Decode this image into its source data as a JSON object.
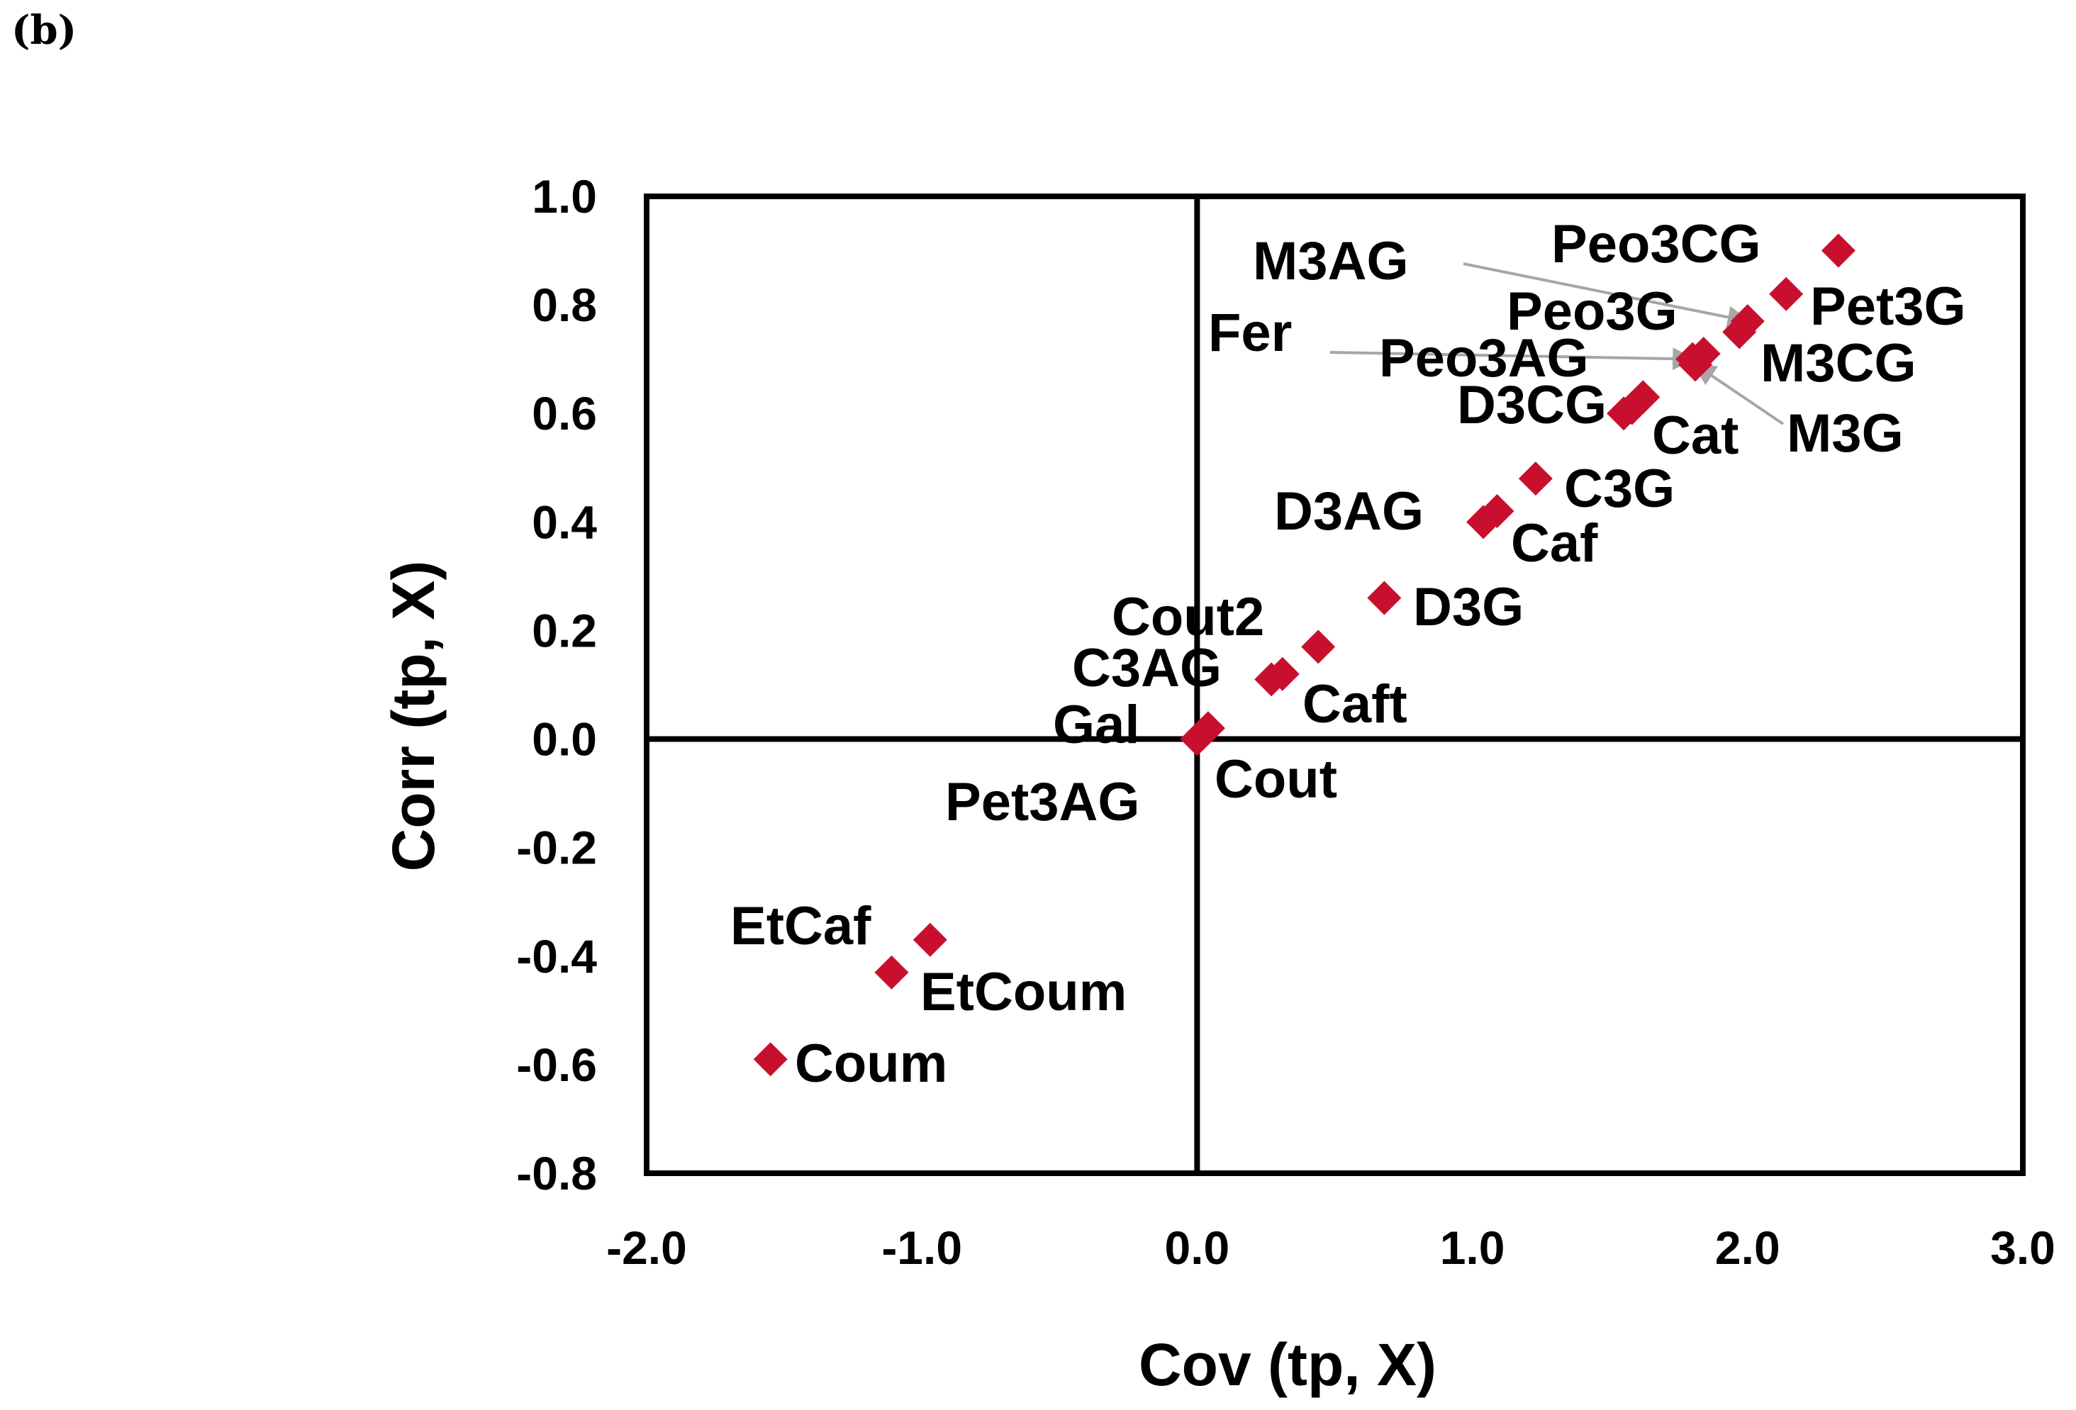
{
  "panel_label": "(b)",
  "chart_data": {
    "type": "scatter",
    "title": "",
    "xlabel": "Cov (tp, X)",
    "ylabel": "Corr (tp, X)",
    "xlim": [
      -2.0,
      3.0
    ],
    "ylim": [
      -0.8,
      1.0
    ],
    "x_ticks": [
      -2.0,
      -1.0,
      0.0,
      1.0,
      2.0,
      3.0
    ],
    "y_ticks": [
      -0.8,
      -0.6,
      -0.4,
      -0.2,
      0.0,
      0.2,
      0.4,
      0.6,
      0.8,
      1.0
    ],
    "x_tick_labels": [
      "-2.0",
      "-1.0",
      "0.0",
      "1.0",
      "2.0",
      "3.0"
    ],
    "y_tick_labels": [
      "-0.8",
      "-0.6",
      "-0.4",
      "-0.2",
      "0.0",
      "0.2",
      "0.4",
      "0.6",
      "0.8",
      "1.0"
    ],
    "marker": "diamond",
    "marker_color": "#c8102e",
    "leader_color": "#a6a6a6",
    "points": [
      {
        "label": "Peo3CG",
        "x": 2.33,
        "y": 0.9
      },
      {
        "label": "Pet3G",
        "x": 2.14,
        "y": 0.82
      },
      {
        "label": "M3AG",
        "x": 2.0,
        "y": 0.77
      },
      {
        "label": "Peo3G",
        "x": 1.97,
        "y": 0.75
      },
      {
        "label": "M3CG",
        "x": 1.84,
        "y": 0.71
      },
      {
        "label": "M3G",
        "x": 1.81,
        "y": 0.69
      },
      {
        "label": "Fer",
        "x": 1.8,
        "y": 0.7
      },
      {
        "label": "Peo3AG",
        "x": 1.62,
        "y": 0.63
      },
      {
        "label": "D3CG",
        "x": 1.58,
        "y": 0.61
      },
      {
        "label": "Cat",
        "x": 1.55,
        "y": 0.6
      },
      {
        "label": "C3G",
        "x": 1.23,
        "y": 0.48
      },
      {
        "label": "Caf",
        "x": 1.09,
        "y": 0.42
      },
      {
        "label": "D3AG",
        "x": 1.04,
        "y": 0.4
      },
      {
        "label": "D3G",
        "x": 0.68,
        "y": 0.26
      },
      {
        "label": "Cout2",
        "x": 0.44,
        "y": 0.17
      },
      {
        "label": "Caft",
        "x": 0.31,
        "y": 0.12
      },
      {
        "label": "C3AG",
        "x": 0.27,
        "y": 0.11
      },
      {
        "label": "Cout",
        "x": 0.04,
        "y": 0.02
      },
      {
        "label": "Gal",
        "x": 0.02,
        "y": 0.01
      },
      {
        "label": "Pet3AG",
        "x": 0.0,
        "y": 0.0
      },
      {
        "label": "EtCaf",
        "x": -0.97,
        "y": -0.37
      },
      {
        "label": "EtCoum",
        "x": -1.11,
        "y": -0.43
      },
      {
        "label": "Coum",
        "x": -1.55,
        "y": -0.59
      }
    ]
  }
}
